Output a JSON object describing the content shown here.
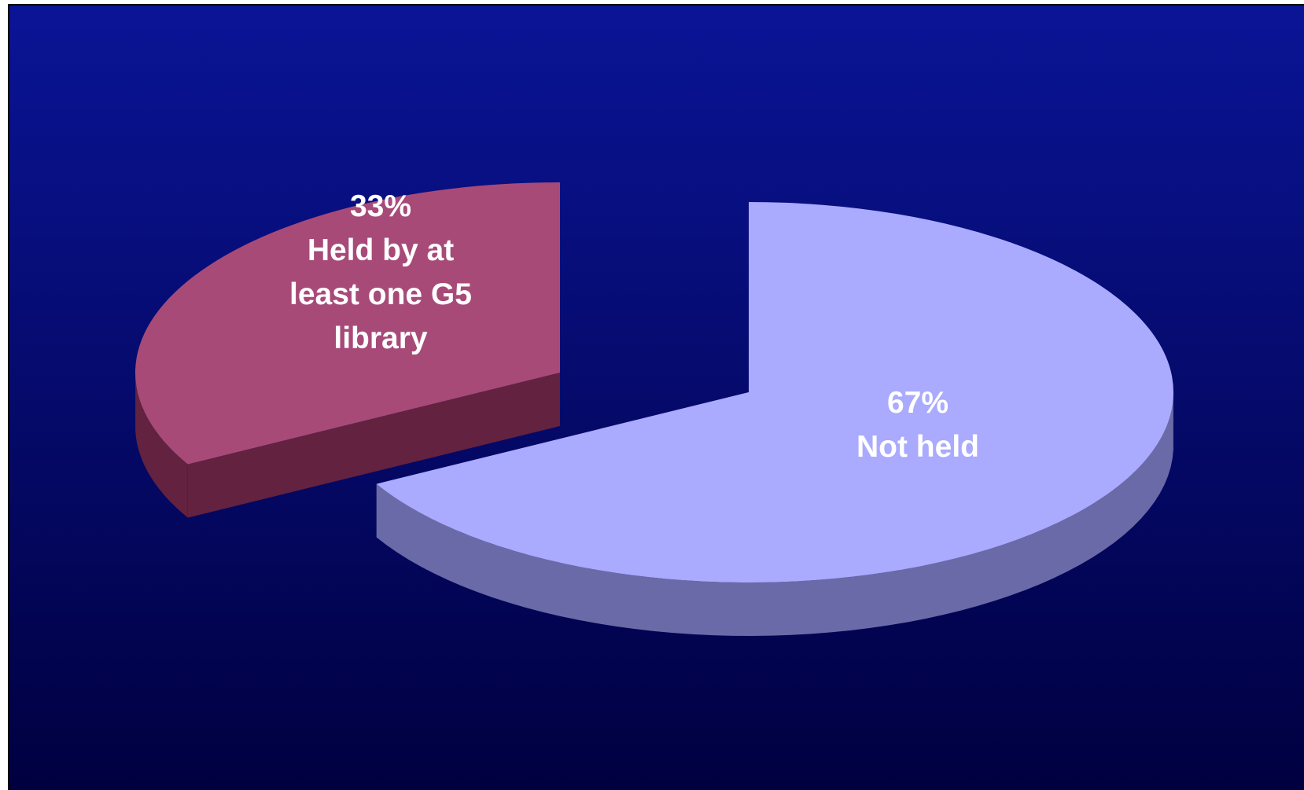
{
  "chart_data": {
    "type": "pie",
    "style": "3d-exploded",
    "legend": "none",
    "slices": [
      {
        "percent": 33,
        "label_lines": [
          "33%",
          "Held by at",
          "least one G5",
          "library"
        ],
        "color": "#A84A78",
        "side_color": "#63223F"
      },
      {
        "percent": 67,
        "label_lines": [
          "67%",
          "Not held"
        ],
        "color": "#AAAAFF",
        "side_color": "#6A6AA8"
      }
    ],
    "background_gradient": [
      "#0A1496",
      "#000040"
    ],
    "label_color": "#FFFFFF"
  }
}
